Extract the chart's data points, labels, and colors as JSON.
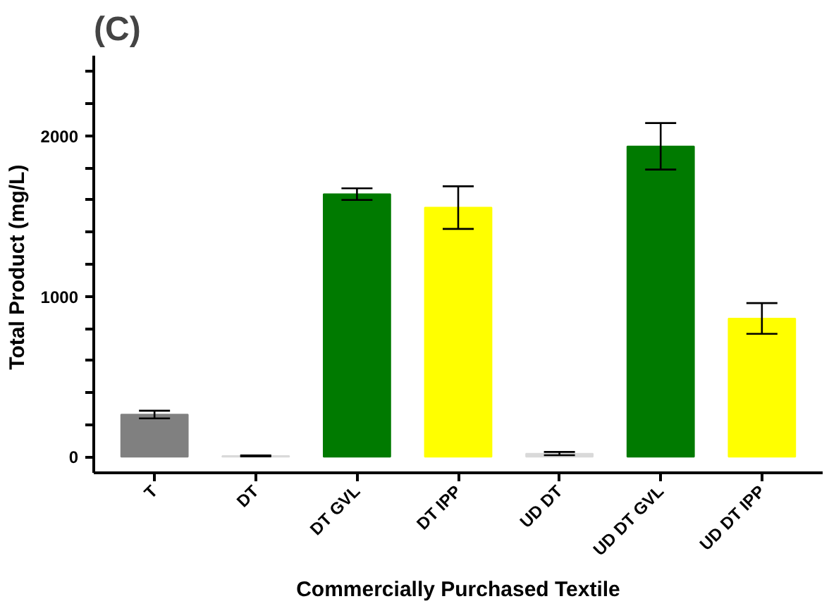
{
  "chart_data": {
    "type": "bar",
    "title": "(C)",
    "xlabel": "Commercially Purchased Textile",
    "ylabel": "Total  Product (mg/L)",
    "categories": [
      "T",
      "DT",
      "DT GVL",
      "DT IPP",
      "UD DT",
      "UD DT GVL",
      "UD DT IPP"
    ],
    "values": [
      263,
      5,
      1637,
      1553,
      20,
      1935,
      862
    ],
    "errors": [
      24,
      3,
      36,
      133,
      10,
      145,
      96
    ],
    "colors": [
      "#808080",
      "#d9d9d9",
      "#007a00",
      "#ffff00",
      "#d9d9d9",
      "#007a00",
      "#ffff00"
    ],
    "ylim": [
      -100,
      2500
    ],
    "yticks": [
      0,
      {
        "value": 200,
        "label": null
      },
      {
        "value": 400,
        "label": null
      },
      {
        "value": 600,
        "label": null
      },
      {
        "value": 800,
        "label": null
      },
      1000,
      {
        "value": 1200,
        "label": null
      },
      {
        "value": 1400,
        "label": null
      },
      {
        "value": 1600,
        "label": null
      },
      {
        "value": 1800,
        "label": null
      },
      2000,
      {
        "value": 2200,
        "label": null
      },
      {
        "value": 2400,
        "label": null
      }
    ],
    "grid": false
  }
}
